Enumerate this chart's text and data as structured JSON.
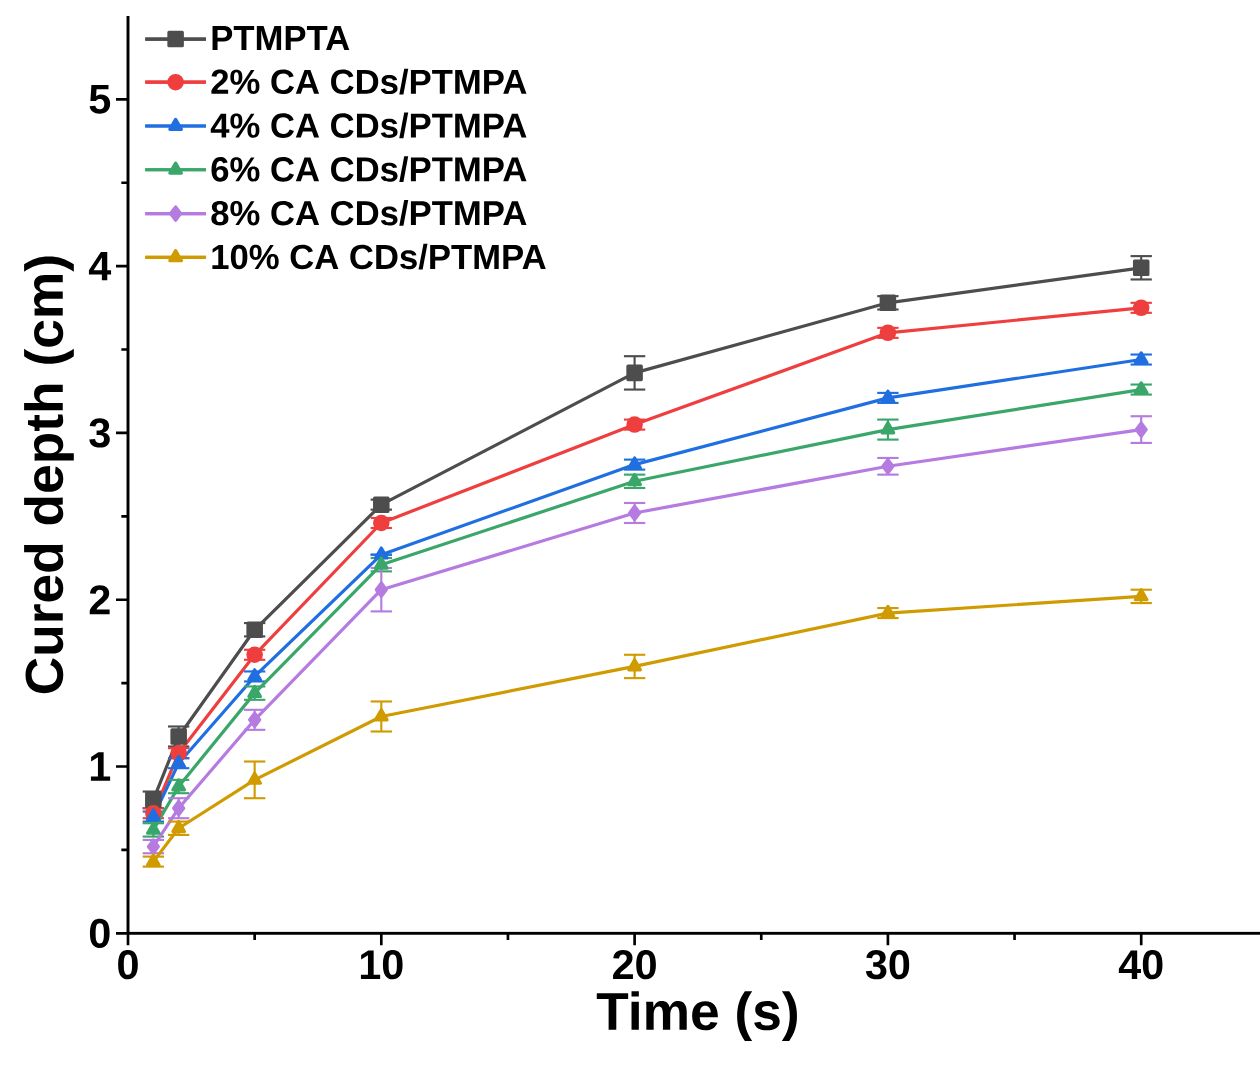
{
  "chart_data": {
    "type": "line",
    "xlabel": "Time (s)",
    "ylabel": "Cured depth (cm)",
    "x": [
      1,
      2,
      5,
      10,
      20,
      30,
      40
    ],
    "xlim": [
      0,
      45
    ],
    "ylim": [
      0,
      5.5
    ],
    "xticks": [
      0,
      {
        "value": 5,
        "label": null
      },
      10,
      {
        "value": 15,
        "label": null
      },
      20,
      {
        "value": 25,
        "label": null
      },
      30,
      {
        "value": 35,
        "label": null
      },
      40
    ],
    "yticks": [
      0,
      {
        "value": 0.5,
        "label": null
      },
      1,
      {
        "value": 1.5,
        "label": null
      },
      2,
      {
        "value": 2.5,
        "label": null
      },
      3,
      {
        "value": 3.5,
        "label": null
      },
      4,
      {
        "value": 4.5,
        "label": null
      },
      5
    ],
    "legend": "top left",
    "line_style": "solid",
    "series": [
      {
        "name": "PTMPTA",
        "color": "#4d4d4d",
        "marker": "square",
        "values": [
          0.8,
          1.18,
          1.82,
          2.57,
          3.36,
          3.78,
          3.99
        ],
        "errors": [
          0.05,
          0.06,
          0.04,
          0.03,
          0.1,
          0.04,
          0.07
        ]
      },
      {
        "name": "2% CA CDs/PTMPA",
        "color": "#ef3e3e",
        "marker": "circle",
        "values": [
          0.72,
          1.08,
          1.67,
          2.46,
          3.05,
          3.6,
          3.75
        ],
        "errors": [
          0.03,
          0.03,
          0.03,
          0.03,
          0.03,
          0.03,
          0.03
        ]
      },
      {
        "name": "4% CA CDs/PTMPA",
        "color": "#1f6fe0",
        "marker": "triangle",
        "values": [
          0.7,
          1.02,
          1.54,
          2.27,
          2.81,
          3.21,
          3.44
        ],
        "errors": [
          0.03,
          0.03,
          0.03,
          null,
          0.03,
          0.03,
          0.03
        ]
      },
      {
        "name": "6% CA CDs/PTMPA",
        "color": "#3aa66a",
        "marker": "triangle",
        "values": [
          0.62,
          0.88,
          1.44,
          2.21,
          2.71,
          3.02,
          3.26
        ],
        "errors": [
          0.04,
          0.04,
          0.04,
          0.04,
          0.04,
          0.06,
          0.03
        ]
      },
      {
        "name": "8% CA CDs/PTMPA",
        "color": "#b57be0",
        "marker": "diamond",
        "values": [
          0.52,
          0.75,
          1.28,
          2.06,
          2.52,
          2.8,
          3.02
        ],
        "errors": [
          0.04,
          0.06,
          0.06,
          0.13,
          0.06,
          0.05,
          0.08
        ]
      },
      {
        "name": "10% CA CDs/PTMPA",
        "color": "#d09b00",
        "marker": "triangle",
        "values": [
          0.43,
          0.63,
          0.92,
          1.3,
          1.6,
          1.92,
          2.02
        ],
        "errors": [
          0.03,
          0.04,
          0.11,
          0.09,
          0.07,
          0.03,
          0.04
        ]
      }
    ]
  }
}
